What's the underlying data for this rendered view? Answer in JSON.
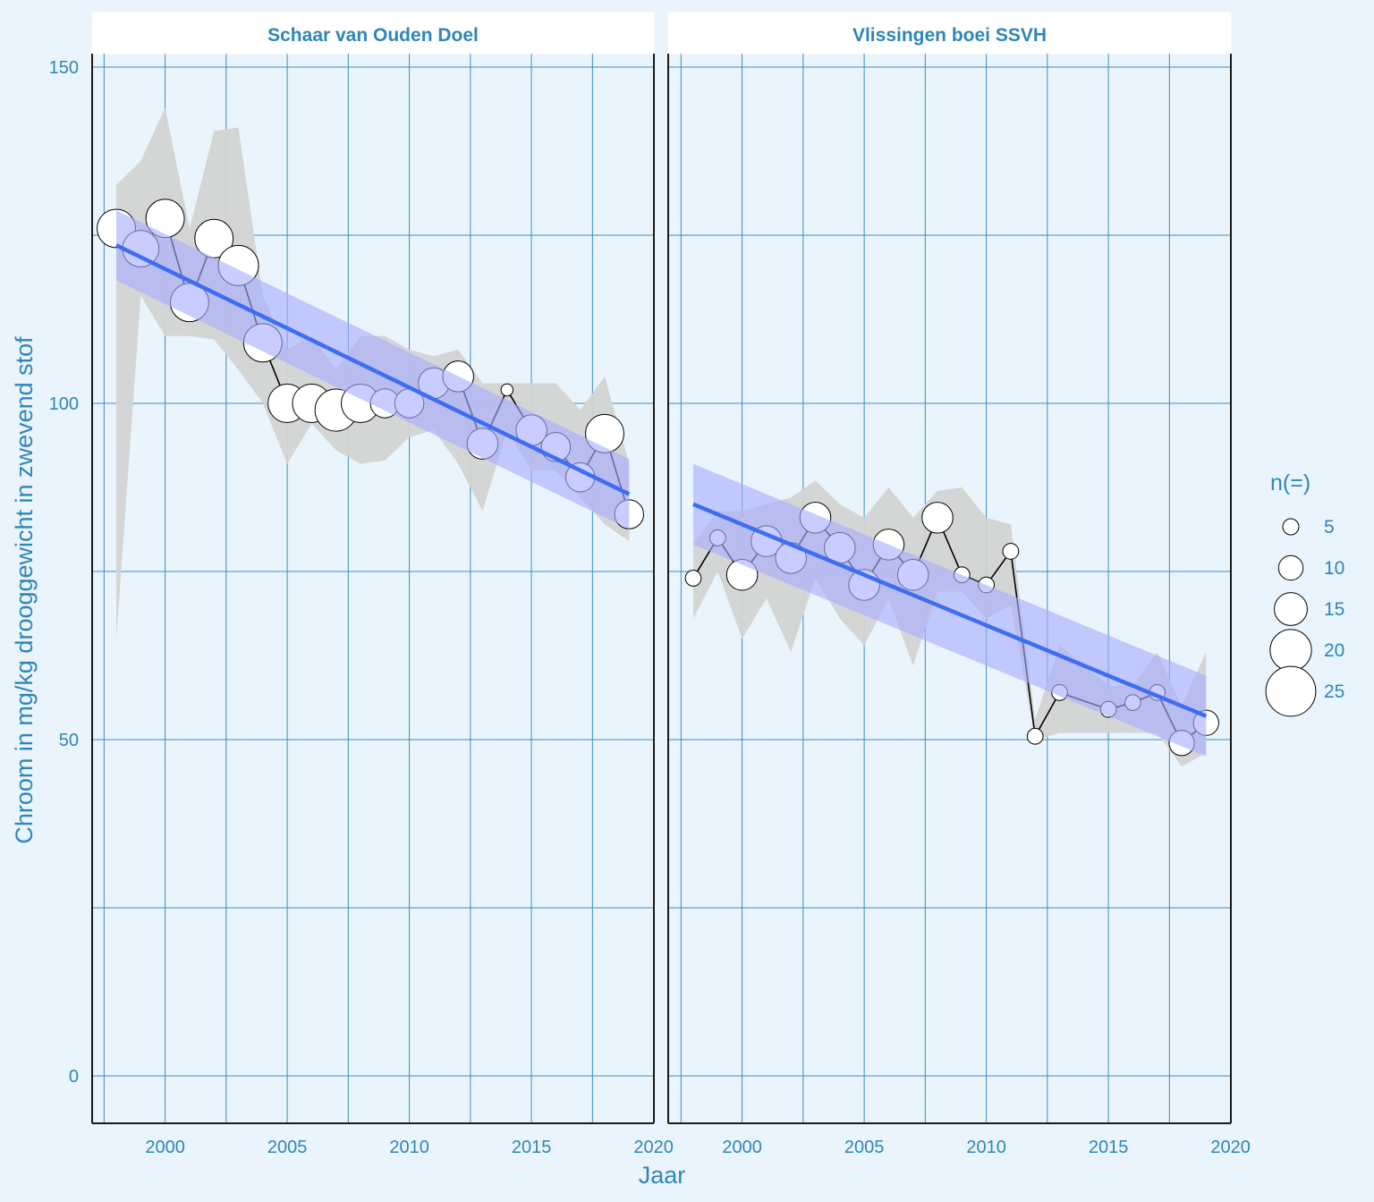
{
  "chart_data": {
    "type": "line",
    "ylabel": "Chroom in mg/kg drooggewicht in zwevend stof",
    "xlabel": "Jaar",
    "xlim": [
      1997.4,
      2020.4
    ],
    "ylim": [
      -7,
      150
    ],
    "x_ticks": [
      2000,
      2005,
      2010,
      2015,
      2020
    ],
    "y_ticks": [
      0,
      50,
      100,
      150
    ],
    "y_gridlines": [
      0,
      25,
      50,
      75,
      100,
      125,
      150
    ],
    "x_gridlines": [
      1997.5,
      2000,
      2002.5,
      2005,
      2007.5,
      2010,
      2012.5,
      2015,
      2017.5,
      2020
    ],
    "grid": true,
    "legend": {
      "title": "n(=)",
      "position": "right",
      "items": [
        {
          "label": "5",
          "n": 5
        },
        {
          "label": "10",
          "n": 10
        },
        {
          "label": "15",
          "n": 15
        },
        {
          "label": "20",
          "n": 20
        },
        {
          "label": "25",
          "n": 25
        }
      ]
    },
    "colors": {
      "ribbon": "#d3d3d3",
      "trend_line": "#3d6ef2",
      "trend_band": "#a6acff",
      "points_fill": "#ffffff",
      "series_line": "#000000",
      "text": "#2e86b8",
      "grid": "#3a8fb8",
      "background": "#eaf4fc"
    },
    "panels": [
      {
        "title": "Schaar van Ouden Doel",
        "points": [
          {
            "x": 1998,
            "y": 126,
            "n": 17,
            "lo": 132.5,
            "hi": 132.5
          },
          {
            "x": 1999,
            "y": 123,
            "n": 16,
            "lo": 116,
            "hi": 136
          },
          {
            "x": 2000,
            "y": 127.5,
            "n": 17,
            "lo": 110,
            "hi": 144
          },
          {
            "x": 2001,
            "y": 115,
            "n": 17,
            "lo": 110,
            "hi": 126
          },
          {
            "x": 2002,
            "y": 124.5,
            "n": 17,
            "lo": 109.5,
            "hi": 140.5
          },
          {
            "x": 2003,
            "y": 120.5,
            "n": 18,
            "lo": 105,
            "hi": 141
          },
          {
            "x": 2004,
            "y": 109,
            "n": 17,
            "lo": 100,
            "hi": 116
          },
          {
            "x": 2005,
            "y": 100,
            "n": 17,
            "lo": 91,
            "hi": 108
          },
          {
            "x": 2006,
            "y": 100,
            "n": 17,
            "lo": 97,
            "hi": 110
          },
          {
            "x": 2007,
            "y": 99,
            "n": 19,
            "lo": 93,
            "hi": 105
          },
          {
            "x": 2008,
            "y": 100,
            "n": 17,
            "lo": 91,
            "hi": 110
          },
          {
            "x": 2009,
            "y": 100,
            "n": 12,
            "lo": 91.5,
            "hi": 110
          },
          {
            "x": 2010,
            "y": 100,
            "n": 12,
            "lo": 95,
            "hi": 108
          },
          {
            "x": 2011,
            "y": 103,
            "n": 13,
            "lo": 96,
            "hi": 107
          },
          {
            "x": 2012,
            "y": 104,
            "n": 13,
            "lo": 91,
            "hi": 108
          },
          {
            "x": 2013,
            "y": 94,
            "n": 13,
            "lo": 84,
            "hi": 103
          },
          {
            "x": 2014,
            "y": 102,
            "n": 3,
            "lo": 96,
            "hi": 103
          },
          {
            "x": 2015,
            "y": 96,
            "n": 13,
            "lo": 90,
            "hi": 103
          },
          {
            "x": 2016,
            "y": 93.5,
            "n": 12,
            "lo": 90,
            "hi": 103
          },
          {
            "x": 2017,
            "y": 89,
            "n": 12,
            "lo": 86,
            "hi": 99
          },
          {
            "x": 2018,
            "y": 95.5,
            "n": 17,
            "lo": 82,
            "hi": 104
          },
          {
            "x": 2019,
            "y": 83.5,
            "n": 12,
            "lo": 79.5,
            "hi": 91
          }
        ],
        "ribbon_lower_start": 65,
        "trend": {
          "start": [
            1998,
            123.5
          ],
          "end": [
            2019,
            86.5
          ],
          "band_width": 5.2
        }
      },
      {
        "title": "Vlissingen boei SSVH",
        "points": [
          {
            "x": 1998,
            "y": 74,
            "n": 5,
            "lo": 68,
            "hi": 79
          },
          {
            "x": 1999,
            "y": 80,
            "n": 5,
            "lo": 75,
            "hi": 84
          },
          {
            "x": 2000,
            "y": 74.5,
            "n": 13,
            "lo": 65,
            "hi": 84
          },
          {
            "x": 2001,
            "y": 79.5,
            "n": 13,
            "lo": 71,
            "hi": 85
          },
          {
            "x": 2002,
            "y": 77,
            "n": 13,
            "lo": 63,
            "hi": 86
          },
          {
            "x": 2003,
            "y": 83,
            "n": 13,
            "lo": 74,
            "hi": 88.5
          },
          {
            "x": 2004,
            "y": 78.5,
            "n": 13,
            "lo": 68,
            "hi": 85
          },
          {
            "x": 2005,
            "y": 73,
            "n": 13,
            "lo": 64,
            "hi": 83
          },
          {
            "x": 2006,
            "y": 79,
            "n": 13,
            "lo": 71,
            "hi": 87.5
          },
          {
            "x": 2007,
            "y": 74.5,
            "n": 13,
            "lo": 61,
            "hi": 83
          },
          {
            "x": 2008,
            "y": 83,
            "n": 13,
            "lo": 72,
            "hi": 87
          },
          {
            "x": 2009,
            "y": 74.5,
            "n": 5,
            "lo": 72,
            "hi": 87.5
          },
          {
            "x": 2010,
            "y": 73,
            "n": 5,
            "lo": 68,
            "hi": 83
          },
          {
            "x": 2011,
            "y": 78,
            "n": 5,
            "lo": 70,
            "hi": 82
          },
          {
            "x": 2012,
            "y": 50.5,
            "n": 5,
            "lo": 50,
            "hi": 53
          },
          {
            "x": 2013,
            "y": 57,
            "n": 5,
            "lo": 51,
            "hi": 64
          },
          {
            "x": 2015,
            "y": 54.5,
            "n": 5,
            "lo": 51,
            "hi": 58
          },
          {
            "x": 2016,
            "y": 55.5,
            "n": 5,
            "lo": 51,
            "hi": 58
          },
          {
            "x": 2017,
            "y": 57,
            "n": 5,
            "lo": 51,
            "hi": 63
          },
          {
            "x": 2018,
            "y": 49.5,
            "n": 10,
            "lo": 46,
            "hi": 55
          },
          {
            "x": 2019,
            "y": 52.5,
            "n": 10,
            "lo": 48,
            "hi": 63
          }
        ],
        "trend": {
          "start": [
            1998,
            85
          ],
          "end": [
            2019,
            53.5
          ],
          "band_width": 6
        }
      }
    ]
  }
}
